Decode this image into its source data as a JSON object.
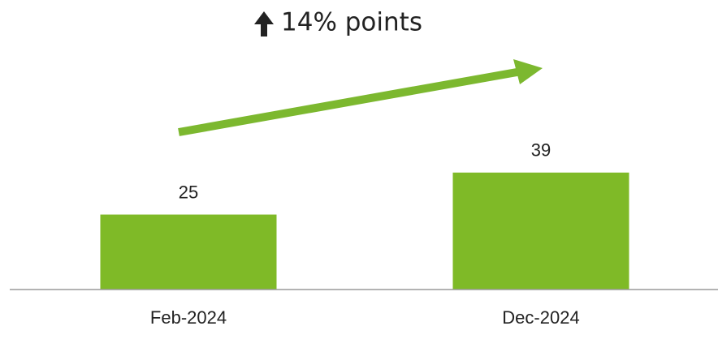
{
  "chart_data": {
    "type": "bar",
    "annotation": "14% points",
    "categories": [
      "Feb-2024",
      "Dec-2024"
    ],
    "values": [
      25,
      39
    ],
    "color": "#7fba27",
    "ylim": [
      0,
      96
    ]
  }
}
